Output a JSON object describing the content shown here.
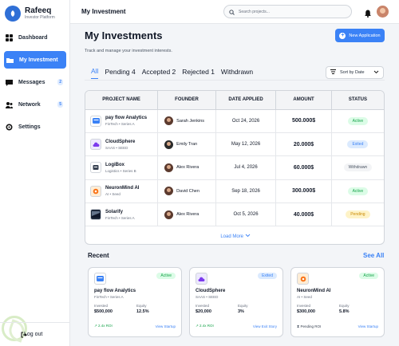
{
  "brand": {
    "name": "Rafeeq",
    "subtitle": "Investor Platform"
  },
  "sidebar": {
    "items": [
      {
        "label": "Dashboard",
        "icon": "grid-icon"
      },
      {
        "label": "My Investment",
        "icon": "folder-icon"
      },
      {
        "label": "Messages",
        "icon": "message-icon",
        "badge": "2"
      },
      {
        "label": "Network",
        "icon": "network-icon",
        "badge": "5"
      },
      {
        "label": "Settings",
        "icon": "gear-icon"
      }
    ],
    "logout_label": "Log out"
  },
  "topbar": {
    "title": "My Investment",
    "search_placeholder": "Search projects..."
  },
  "main": {
    "title": "My Investments",
    "subtitle": "Track and manage your investment interests.",
    "new_button": "New Application",
    "tabs": [
      "All",
      "Pending 4",
      "Accepted 2",
      "Rejected 1",
      "Withdrawn"
    ],
    "sort_label": "Sort by Date"
  },
  "table": {
    "headers": [
      "PROJECT NAME",
      "FOUNDER",
      "DATE APPLIED",
      "AMOUNT",
      "STATUS"
    ],
    "rows": [
      {
        "name": "pay flow Analytics",
        "meta": "FinTech • Series A",
        "founder": "Sarah Jenkins",
        "date": "Oct 24, 2026",
        "amount": "500.000$",
        "status": "Active"
      },
      {
        "name": "CloudSphere",
        "meta": "SAAS • SEED",
        "founder": "Emily Tran",
        "date": "May 12, 2026",
        "amount": "20.000$",
        "status": "Exited"
      },
      {
        "name": "LogiBox",
        "meta": "Logistics • Series B",
        "founder": "Alex Rivera",
        "date": "Jul 4, 2026",
        "amount": "60.000$",
        "status": "Withdrawn"
      },
      {
        "name": "NeuronMind AI",
        "meta": "AI • Seed",
        "founder": "David Chen",
        "date": "Sep 18, 2026",
        "amount": "300.000$",
        "status": "Active"
      },
      {
        "name": "Solarify",
        "meta": "FinTech • Series A",
        "founder": "Alex Rivera",
        "date": "Oct 5, 2026",
        "amount": "40.000$",
        "status": "Pending"
      }
    ],
    "load_more": "Load More"
  },
  "recent": {
    "title": "Recent",
    "see_all": "See All",
    "cards": [
      {
        "name": "pay flow Analytics",
        "meta": "FinTech • Series A",
        "status": "Active",
        "invested_label": "Invested",
        "invested": "$500,000",
        "equity_label": "Equity",
        "equity": "12.5%",
        "foot": "2.4x ROI",
        "link": "View Startup"
      },
      {
        "name": "CloudSphere",
        "meta": "SAAS • SEED",
        "status": "Exited",
        "invested_label": "Invested",
        "invested": "$20,000",
        "equity_label": "Equity",
        "equity": "3%",
        "foot": "2.4x ROI",
        "link": "View Exit Story"
      },
      {
        "name": "NeuronMind AI",
        "meta": "AI • Seed",
        "status": "Active",
        "invested_label": "Invested",
        "invested": "$300,000",
        "equity_label": "Equity",
        "equity": "5.8%",
        "foot": "Pending ROI",
        "link": "View Startup"
      }
    ]
  },
  "colors": {
    "accent": "#3b82f6",
    "active": "#16a34a",
    "exited": "#3b82f6",
    "pending": "#ca8a04",
    "withdrawn": "#4b5563"
  }
}
